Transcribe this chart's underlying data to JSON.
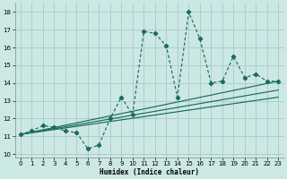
{
  "xlabel": "Humidex (Indice chaleur)",
  "bg_color": "#cce8e4",
  "grid_color": "#aacfcb",
  "line_color": "#1a6b5e",
  "xlim": [
    -0.5,
    23.5
  ],
  "ylim": [
    9.8,
    18.5
  ],
  "xticks": [
    0,
    1,
    2,
    3,
    4,
    5,
    6,
    7,
    8,
    9,
    10,
    11,
    12,
    13,
    14,
    15,
    16,
    17,
    18,
    19,
    20,
    21,
    22,
    23
  ],
  "yticks": [
    10,
    11,
    12,
    13,
    14,
    15,
    16,
    17,
    18
  ],
  "main_line_x": [
    0,
    1,
    2,
    3,
    4,
    5,
    6,
    7,
    8,
    9,
    10,
    11,
    12,
    13,
    14,
    15,
    16,
    17,
    18,
    19,
    20,
    21,
    22,
    23
  ],
  "main_line_y": [
    11.1,
    11.3,
    11.6,
    11.5,
    11.3,
    11.2,
    10.3,
    10.5,
    12.0,
    13.2,
    12.2,
    16.9,
    16.8,
    16.1,
    13.2,
    18.0,
    16.5,
    14.0,
    14.1,
    15.5,
    14.3,
    14.5,
    14.1,
    14.1
  ],
  "reg_line1": [
    [
      0,
      11.1
    ],
    [
      23,
      14.1
    ]
  ],
  "reg_line2": [
    [
      0,
      11.1
    ],
    [
      23,
      13.6
    ]
  ],
  "reg_line3": [
    [
      0,
      11.1
    ],
    [
      23,
      13.2
    ]
  ]
}
